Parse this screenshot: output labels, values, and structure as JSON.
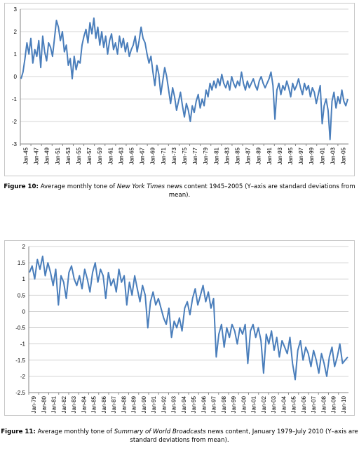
{
  "figures": [
    {
      "caption": {
        "label": "Figure 10:",
        "pre": "Average monthly tone of ",
        "italic": "New York Times",
        "post": " news content 1945–2005 (Y–axis are standard deviations from mean)."
      }
    },
    {
      "caption": {
        "label": "Figure 11:",
        "pre": "Average monthly tone of ",
        "italic": "Summary of World Broadcasts",
        "post": " news content, January 1979–July 2010 (Y–axis are standard deviations from mean)."
      }
    }
  ],
  "colors": {
    "line": "#4a7ebb",
    "grid": "#d4d4d4",
    "axis": "#868686",
    "frame": "#c8c8c8"
  },
  "chart_data": [
    {
      "type": "line",
      "title": "",
      "xlabel": "",
      "ylabel": "",
      "ylim": [
        -3,
        3
      ],
      "y_ticks": [
        "3",
        "2",
        "1",
        "0",
        "-1",
        "-2",
        "-3"
      ],
      "grid": "horizontal",
      "x_range": [
        "Jan-45",
        "Dec-06"
      ],
      "x_tick_labels": [
        "Jan-45",
        "Jan-47",
        "Jan-49",
        "Jan-51",
        "Jan-53",
        "Jan-55",
        "Jan-57",
        "Jan-59",
        "Jan-61",
        "Jan-63",
        "Jan-65",
        "Jan-67",
        "Jan-69",
        "Jan-71",
        "Jan-73",
        "Jan-75",
        "Jan-77",
        "Jan-79",
        "Jan-81",
        "Jan-83",
        "Jan-85",
        "Jan-87",
        "Jan-89",
        "Jan-91",
        "Jan-93",
        "Jan-95",
        "Jan-97",
        "Jan-99",
        "Jan-01",
        "Jan-03",
        "Jan-05"
      ],
      "series": [
        {
          "values": [
            -0.1,
            0.2,
            0.8,
            1.5,
            1.0,
            1.7,
            0.6,
            1.2,
            0.9,
            1.6,
            0.4,
            1.8,
            1.1,
            0.7,
            1.5,
            1.3,
            0.9,
            1.7,
            2.5,
            2.2,
            1.6,
            2.0,
            1.1,
            1.4,
            0.5,
            0.8,
            -0.1,
            0.9,
            0.3,
            0.7,
            0.6,
            1.4,
            1.8,
            2.1,
            1.5,
            2.4,
            1.9,
            2.6,
            1.7,
            2.2,
            1.4,
            2.0,
            1.3,
            1.8,
            1.0,
            1.6,
            1.9,
            1.2,
            1.5,
            1.0,
            1.8,
            1.3,
            1.7,
            1.1,
            1.5,
            0.9,
            1.2,
            1.4,
            1.8,
            1.1,
            1.6,
            2.2,
            1.7,
            1.5,
            1.0,
            0.6,
            0.9,
            0.2,
            -0.4,
            0.5,
            0.1,
            -0.8,
            -0.2,
            0.4,
            0.0,
            -0.6,
            -1.2,
            -0.5,
            -0.9,
            -1.5,
            -1.1,
            -0.7,
            -1.3,
            -1.8,
            -1.2,
            -1.5,
            -2.0,
            -1.3,
            -1.6,
            -1.1,
            -0.8,
            -1.4,
            -1.0,
            -1.3,
            -0.6,
            -0.9,
            -0.3,
            -0.6,
            -0.2,
            -0.5,
            -0.1,
            -0.4,
            0.1,
            -0.3,
            -0.5,
            -0.2,
            -0.6,
            0.0,
            -0.3,
            -0.5,
            -0.2,
            -0.4,
            0.2,
            -0.3,
            -0.6,
            -0.2,
            -0.5,
            -0.3,
            -0.1,
            -0.4,
            -0.6,
            -0.2,
            0.0,
            -0.3,
            -0.5,
            -0.3,
            -0.1,
            0.2,
            -0.4,
            -1.9,
            -0.6,
            -0.3,
            -0.8,
            -0.4,
            -0.6,
            -0.2,
            -0.5,
            -0.9,
            -0.3,
            -0.6,
            -0.4,
            -0.1,
            -0.5,
            -0.8,
            -0.3,
            -0.6,
            -0.4,
            -0.9,
            -0.5,
            -0.7,
            -1.2,
            -0.8,
            -0.4,
            -2.1,
            -1.3,
            -1.0,
            -1.5,
            -2.8,
            -1.1,
            -0.7,
            -1.4,
            -0.9,
            -1.2,
            -0.6,
            -1.1,
            -1.3,
            -1.0
          ]
        }
      ]
    },
    {
      "type": "line",
      "title": "",
      "xlabel": "",
      "ylabel": "",
      "ylim": [
        -2.5,
        2
      ],
      "y_ticks": [
        "2",
        "1.5",
        "1",
        "0.5",
        "0",
        "-0.5",
        "-1",
        "-1.5",
        "-2",
        "-2.5"
      ],
      "grid": "horizontal",
      "x_range": [
        "Jan-79",
        "Jul-10"
      ],
      "x_tick_labels": [
        "Jan-79",
        "Jan-80",
        "Jan-81",
        "Jan-82",
        "Jan-83",
        "Jan-84",
        "Jan-85",
        "Jan-86",
        "Jan-87",
        "Jan-88",
        "Jan-89",
        "Jan-90",
        "Jan-91",
        "Jan-92",
        "Jan-93",
        "Jan-94",
        "Jan-95",
        "Jan-96",
        "Jan-97",
        "Jan-98",
        "Jan-99",
        "Jan-00",
        "Jan-01",
        "Jan-02",
        "Jan-03",
        "Jan-04",
        "Jan-05",
        "Jan-06",
        "Jan-07",
        "Jan-08",
        "Jan-09",
        "Jan-10"
      ],
      "series": [
        {
          "values": [
            1.2,
            1.4,
            1.0,
            1.6,
            1.3,
            1.7,
            1.1,
            1.5,
            1.2,
            0.8,
            1.3,
            0.2,
            1.1,
            0.9,
            0.4,
            1.2,
            1.4,
            1.0,
            0.8,
            1.1,
            0.7,
            1.3,
            1.0,
            0.6,
            1.2,
            1.5,
            0.9,
            1.3,
            1.1,
            0.4,
            1.2,
            0.8,
            1.0,
            0.6,
            1.3,
            0.9,
            1.1,
            0.2,
            0.9,
            0.5,
            1.1,
            0.7,
            0.3,
            0.8,
            0.5,
            -0.5,
            0.3,
            0.6,
            0.2,
            0.4,
            0.1,
            -0.2,
            -0.4,
            0.1,
            -0.8,
            -0.3,
            -0.5,
            -0.2,
            -0.6,
            0.1,
            0.3,
            -0.1,
            0.4,
            0.7,
            0.2,
            0.5,
            0.8,
            0.3,
            0.6,
            0.1,
            0.4,
            -1.4,
            -0.7,
            -0.4,
            -1.1,
            -0.5,
            -0.8,
            -0.4,
            -0.6,
            -1.0,
            -0.5,
            -0.7,
            -0.4,
            -1.6,
            -0.6,
            -0.4,
            -0.8,
            -0.5,
            -0.9,
            -1.9,
            -0.7,
            -1.0,
            -0.6,
            -1.2,
            -0.8,
            -1.4,
            -0.9,
            -1.1,
            -1.3,
            -0.8,
            -1.6,
            -2.1,
            -1.2,
            -0.9,
            -1.5,
            -1.1,
            -1.3,
            -1.7,
            -1.2,
            -1.5,
            -1.9,
            -1.3,
            -1.6,
            -2.0,
            -1.4,
            -1.1,
            -1.7,
            -1.4,
            -1.0,
            -1.6,
            -1.5,
            -1.4
          ]
        }
      ]
    }
  ]
}
